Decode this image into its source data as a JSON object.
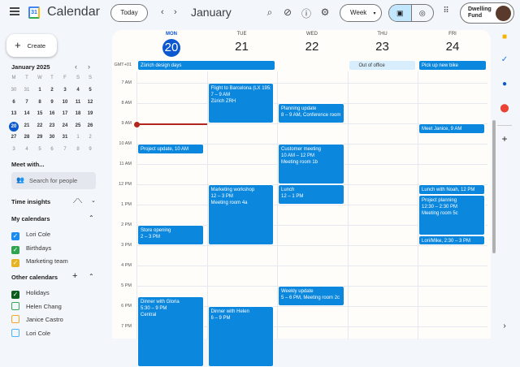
{
  "header": {
    "app_title": "Calendar",
    "logo_text": "31",
    "today_label": "Today",
    "month": "January",
    "view": "Week",
    "account_brand": "Dwelling Fund",
    "icons": [
      "search-icon",
      "tasks-icon",
      "help-icon",
      "settings-icon",
      "apps-icon"
    ]
  },
  "sidebar": {
    "create_label": "Create",
    "mini_cal": {
      "title": "January 2025",
      "weekdays": [
        "M",
        "T",
        "W",
        "T",
        "F",
        "S",
        "S"
      ],
      "weeks": [
        [
          "30",
          "31",
          "1",
          "2",
          "3",
          "4",
          "5"
        ],
        [
          "6",
          "7",
          "8",
          "9",
          "10",
          "11",
          "12"
        ],
        [
          "13",
          "14",
          "15",
          "16",
          "17",
          "18",
          "19"
        ],
        [
          "20",
          "21",
          "22",
          "23",
          "24",
          "25",
          "26"
        ],
        [
          "27",
          "28",
          "29",
          "30",
          "31",
          "1",
          "2"
        ],
        [
          "3",
          "4",
          "5",
          "6",
          "7",
          "8",
          "9"
        ]
      ],
      "selected": "20"
    },
    "meet_with": "Meet with...",
    "search_placeholder": "Search for people",
    "time_insights": "Time insights",
    "my_calendars_title": "My calendars",
    "my_calendars": [
      {
        "name": "Lori Cole",
        "color": "#1a8cf0",
        "checked": true
      },
      {
        "name": "Birthdays",
        "color": "#2ea44f",
        "checked": true
      },
      {
        "name": "Marketing team",
        "color": "#e6b422",
        "checked": true
      }
    ],
    "other_calendars_title": "Other calendars",
    "other_calendars": [
      {
        "name": "Holidays",
        "color": "#0b5d1e",
        "checked": true
      },
      {
        "name": "Helen Chang",
        "color": "#3aa757",
        "checked": false
      },
      {
        "name": "Janice Castro",
        "color": "#f5a623",
        "checked": false
      },
      {
        "name": "Lori Cole",
        "color": "#4fb3f6",
        "checked": false
      }
    ]
  },
  "grid": {
    "timezone": "GMT+01",
    "days": [
      {
        "dow": "MON",
        "num": "20",
        "today": true
      },
      {
        "dow": "TUE",
        "num": "21"
      },
      {
        "dow": "WED",
        "num": "22"
      },
      {
        "dow": "THU",
        "num": "23"
      },
      {
        "dow": "FRI",
        "num": "24"
      }
    ],
    "hours": [
      "7 AM",
      "8 AM",
      "9 AM",
      "10 AM",
      "11 AM",
      "12 PM",
      "1 PM",
      "2 PM",
      "3 PM",
      "4 PM",
      "5 PM",
      "6 PM",
      "7 PM"
    ],
    "current_time": 9,
    "all_day": [
      {
        "title": "Zürich design days",
        "day": 0,
        "span": 2
      },
      {
        "title": "Out of office",
        "day": 3,
        "span": 1,
        "ooo": true
      },
      {
        "title": "Pick up new bike",
        "day": 4,
        "span": 1
      }
    ],
    "events": [
      {
        "day": 1,
        "start": 7,
        "end": 9,
        "title": "Flight to Barcelona (LX 1952)",
        "time": "7 – 9 AM",
        "loc": "Zürich ZRH"
      },
      {
        "day": 2,
        "start": 8,
        "end": 9,
        "title": "Planning update",
        "time": "8 – 9 AM, Conference room"
      },
      {
        "day": 0,
        "start": 10,
        "end": 10.5,
        "title": "Project update, 10 AM"
      },
      {
        "day": 2,
        "start": 10,
        "end": 12,
        "title": "Customer meeting",
        "time": "10 AM – 12 PM",
        "loc": "Meeting room 1b"
      },
      {
        "day": 2,
        "start": 12,
        "end": 13,
        "title": "Lunch",
        "time": "12 – 1 PM"
      },
      {
        "day": 1,
        "start": 12,
        "end": 15,
        "title": "Marketing workshop",
        "time": "12 – 3 PM",
        "loc": "Meeting room 4a"
      },
      {
        "day": 0,
        "start": 14,
        "end": 15,
        "title": "Store opening",
        "time": "2 – 3 PM"
      },
      {
        "day": 2,
        "start": 17,
        "end": 18,
        "title": "Weekly update",
        "time": "5 – 6 PM, Meeting room 2c"
      },
      {
        "day": 0,
        "start": 17.5,
        "end": 21,
        "title": "Dinner with Gloria",
        "time": "5:30 – 9 PM",
        "loc": "Central"
      },
      {
        "day": 1,
        "start": 18,
        "end": 21,
        "title": "Dinner with Helen",
        "time": "6 – 9 PM"
      },
      {
        "day": 4,
        "start": 9,
        "end": 9.5,
        "title": "Meet Janice, 9 AM"
      },
      {
        "day": 4,
        "start": 12,
        "end": 12.5,
        "title": "Lunch with Noah, 12 PM"
      },
      {
        "day": 4,
        "start": 12.5,
        "end": 14.5,
        "title": "Project planning",
        "time": "12:30 – 2:30 PM",
        "loc": "Meeting room 5c"
      },
      {
        "day": 4,
        "start": 14.5,
        "end": 15,
        "title": "Lori/Mike, 2:30 – 3 PM"
      }
    ]
  },
  "colors": {
    "event": "#0b87dd",
    "today": "#0b57d0",
    "now_line": "#b3261e"
  },
  "right_panel": {
    "icons": [
      "keep-icon",
      "tasks-icon",
      "contacts-icon",
      "maps-icon",
      "add-icon",
      "expand-icon"
    ]
  }
}
